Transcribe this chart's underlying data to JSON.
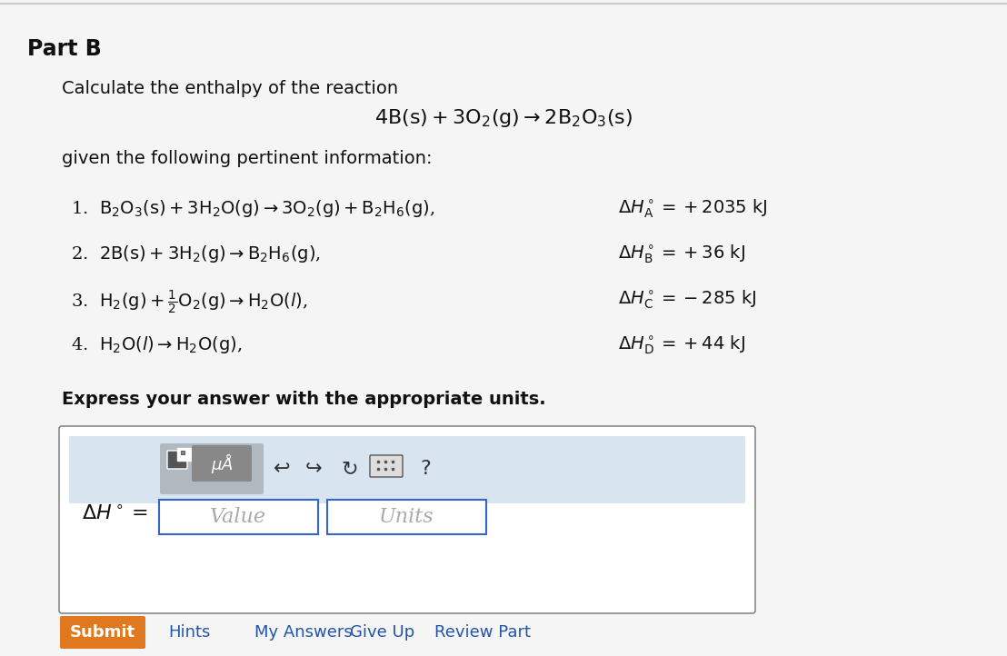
{
  "background_color": "#f5f5f5",
  "part_b_label": "Part B",
  "intro_text": "Calculate the enthalpy of the reaction",
  "main_equation": "$4\\mathrm{B(s)} + 3\\mathrm{O_2(g)} \\rightarrow 2\\mathrm{B_2O_3(s)}$",
  "given_text": "given the following pertinent information:",
  "reactions": [
    "1.  $\\mathrm{B_2O_3(s) + 3H_2O(g) \\rightarrow 3O_2(g) + B_2H_6(g)}$,",
    "2.  $\\mathrm{2B(s) + 3H_2(g) \\rightarrow B_2H_6(g)}$,",
    "3.  $\\mathrm{H_2(g) + \\frac{1}{2}O_2(g) \\rightarrow H_2O(\\mathit{l})}$,",
    "4.  $\\mathrm{H_2O(\\mathit{l}) \\rightarrow H_2O(g)}$,"
  ],
  "enthalpies": [
    "$\\Delta H^\\circ_\\mathrm{A} = +2035\\ \\mathrm{kJ}$",
    "$\\Delta H^\\circ_\\mathrm{B} = +36\\ \\mathrm{kJ}$",
    "$\\Delta H^\\circ_\\mathrm{C} = -285\\ \\mathrm{kJ}$",
    "$\\Delta H^\\circ_\\mathrm{D} = +44\\ \\mathrm{kJ}$"
  ],
  "express_text": "Express your answer with the appropriate units.",
  "delta_h_label": "$\\Delta H^\\circ =$",
  "value_placeholder": "Value",
  "units_placeholder": "Units",
  "submit_label": "Submit",
  "hints_label": "Hints",
  "my_answers_label": "My Answers",
  "give_up_label": "Give Up",
  "review_part_label": "Review Part",
  "toolbar_bg": "#b0b8c0",
  "input_area_bg": "#d8e4f0",
  "outer_box_bg": "#f0f0f0",
  "submit_color": "#e07820",
  "border_color": "#888888"
}
